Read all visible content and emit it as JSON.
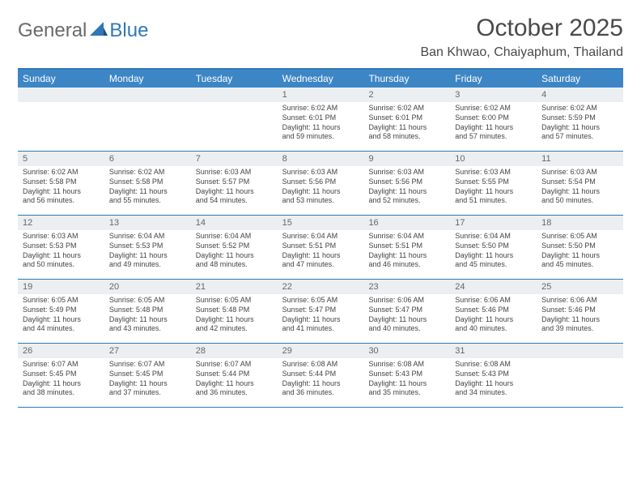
{
  "brand": {
    "word1": "General",
    "word2": "Blue"
  },
  "title": "October 2025",
  "location": "Ban Khwao, Chaiyaphum, Thailand",
  "colors": {
    "accent": "#2f78b7",
    "header_bg": "#3d86c6",
    "daynum_bg": "#eceff1",
    "text": "#444444",
    "title_text": "#4a4a4a"
  },
  "days_of_week": [
    "Sunday",
    "Monday",
    "Tuesday",
    "Wednesday",
    "Thursday",
    "Friday",
    "Saturday"
  ],
  "weeks": [
    [
      {
        "n": "",
        "lines": []
      },
      {
        "n": "",
        "lines": []
      },
      {
        "n": "",
        "lines": []
      },
      {
        "n": "1",
        "lines": [
          "Sunrise: 6:02 AM",
          "Sunset: 6:01 PM",
          "Daylight: 11 hours",
          "and 59 minutes."
        ]
      },
      {
        "n": "2",
        "lines": [
          "Sunrise: 6:02 AM",
          "Sunset: 6:01 PM",
          "Daylight: 11 hours",
          "and 58 minutes."
        ]
      },
      {
        "n": "3",
        "lines": [
          "Sunrise: 6:02 AM",
          "Sunset: 6:00 PM",
          "Daylight: 11 hours",
          "and 57 minutes."
        ]
      },
      {
        "n": "4",
        "lines": [
          "Sunrise: 6:02 AM",
          "Sunset: 5:59 PM",
          "Daylight: 11 hours",
          "and 57 minutes."
        ]
      }
    ],
    [
      {
        "n": "5",
        "lines": [
          "Sunrise: 6:02 AM",
          "Sunset: 5:58 PM",
          "Daylight: 11 hours",
          "and 56 minutes."
        ]
      },
      {
        "n": "6",
        "lines": [
          "Sunrise: 6:02 AM",
          "Sunset: 5:58 PM",
          "Daylight: 11 hours",
          "and 55 minutes."
        ]
      },
      {
        "n": "7",
        "lines": [
          "Sunrise: 6:03 AM",
          "Sunset: 5:57 PM",
          "Daylight: 11 hours",
          "and 54 minutes."
        ]
      },
      {
        "n": "8",
        "lines": [
          "Sunrise: 6:03 AM",
          "Sunset: 5:56 PM",
          "Daylight: 11 hours",
          "and 53 minutes."
        ]
      },
      {
        "n": "9",
        "lines": [
          "Sunrise: 6:03 AM",
          "Sunset: 5:56 PM",
          "Daylight: 11 hours",
          "and 52 minutes."
        ]
      },
      {
        "n": "10",
        "lines": [
          "Sunrise: 6:03 AM",
          "Sunset: 5:55 PM",
          "Daylight: 11 hours",
          "and 51 minutes."
        ]
      },
      {
        "n": "11",
        "lines": [
          "Sunrise: 6:03 AM",
          "Sunset: 5:54 PM",
          "Daylight: 11 hours",
          "and 50 minutes."
        ]
      }
    ],
    [
      {
        "n": "12",
        "lines": [
          "Sunrise: 6:03 AM",
          "Sunset: 5:53 PM",
          "Daylight: 11 hours",
          "and 50 minutes."
        ]
      },
      {
        "n": "13",
        "lines": [
          "Sunrise: 6:04 AM",
          "Sunset: 5:53 PM",
          "Daylight: 11 hours",
          "and 49 minutes."
        ]
      },
      {
        "n": "14",
        "lines": [
          "Sunrise: 6:04 AM",
          "Sunset: 5:52 PM",
          "Daylight: 11 hours",
          "and 48 minutes."
        ]
      },
      {
        "n": "15",
        "lines": [
          "Sunrise: 6:04 AM",
          "Sunset: 5:51 PM",
          "Daylight: 11 hours",
          "and 47 minutes."
        ]
      },
      {
        "n": "16",
        "lines": [
          "Sunrise: 6:04 AM",
          "Sunset: 5:51 PM",
          "Daylight: 11 hours",
          "and 46 minutes."
        ]
      },
      {
        "n": "17",
        "lines": [
          "Sunrise: 6:04 AM",
          "Sunset: 5:50 PM",
          "Daylight: 11 hours",
          "and 45 minutes."
        ]
      },
      {
        "n": "18",
        "lines": [
          "Sunrise: 6:05 AM",
          "Sunset: 5:50 PM",
          "Daylight: 11 hours",
          "and 45 minutes."
        ]
      }
    ],
    [
      {
        "n": "19",
        "lines": [
          "Sunrise: 6:05 AM",
          "Sunset: 5:49 PM",
          "Daylight: 11 hours",
          "and 44 minutes."
        ]
      },
      {
        "n": "20",
        "lines": [
          "Sunrise: 6:05 AM",
          "Sunset: 5:48 PM",
          "Daylight: 11 hours",
          "and 43 minutes."
        ]
      },
      {
        "n": "21",
        "lines": [
          "Sunrise: 6:05 AM",
          "Sunset: 5:48 PM",
          "Daylight: 11 hours",
          "and 42 minutes."
        ]
      },
      {
        "n": "22",
        "lines": [
          "Sunrise: 6:05 AM",
          "Sunset: 5:47 PM",
          "Daylight: 11 hours",
          "and 41 minutes."
        ]
      },
      {
        "n": "23",
        "lines": [
          "Sunrise: 6:06 AM",
          "Sunset: 5:47 PM",
          "Daylight: 11 hours",
          "and 40 minutes."
        ]
      },
      {
        "n": "24",
        "lines": [
          "Sunrise: 6:06 AM",
          "Sunset: 5:46 PM",
          "Daylight: 11 hours",
          "and 40 minutes."
        ]
      },
      {
        "n": "25",
        "lines": [
          "Sunrise: 6:06 AM",
          "Sunset: 5:46 PM",
          "Daylight: 11 hours",
          "and 39 minutes."
        ]
      }
    ],
    [
      {
        "n": "26",
        "lines": [
          "Sunrise: 6:07 AM",
          "Sunset: 5:45 PM",
          "Daylight: 11 hours",
          "and 38 minutes."
        ]
      },
      {
        "n": "27",
        "lines": [
          "Sunrise: 6:07 AM",
          "Sunset: 5:45 PM",
          "Daylight: 11 hours",
          "and 37 minutes."
        ]
      },
      {
        "n": "28",
        "lines": [
          "Sunrise: 6:07 AM",
          "Sunset: 5:44 PM",
          "Daylight: 11 hours",
          "and 36 minutes."
        ]
      },
      {
        "n": "29",
        "lines": [
          "Sunrise: 6:08 AM",
          "Sunset: 5:44 PM",
          "Daylight: 11 hours",
          "and 36 minutes."
        ]
      },
      {
        "n": "30",
        "lines": [
          "Sunrise: 6:08 AM",
          "Sunset: 5:43 PM",
          "Daylight: 11 hours",
          "and 35 minutes."
        ]
      },
      {
        "n": "31",
        "lines": [
          "Sunrise: 6:08 AM",
          "Sunset: 5:43 PM",
          "Daylight: 11 hours",
          "and 34 minutes."
        ]
      },
      {
        "n": "",
        "lines": []
      }
    ]
  ]
}
